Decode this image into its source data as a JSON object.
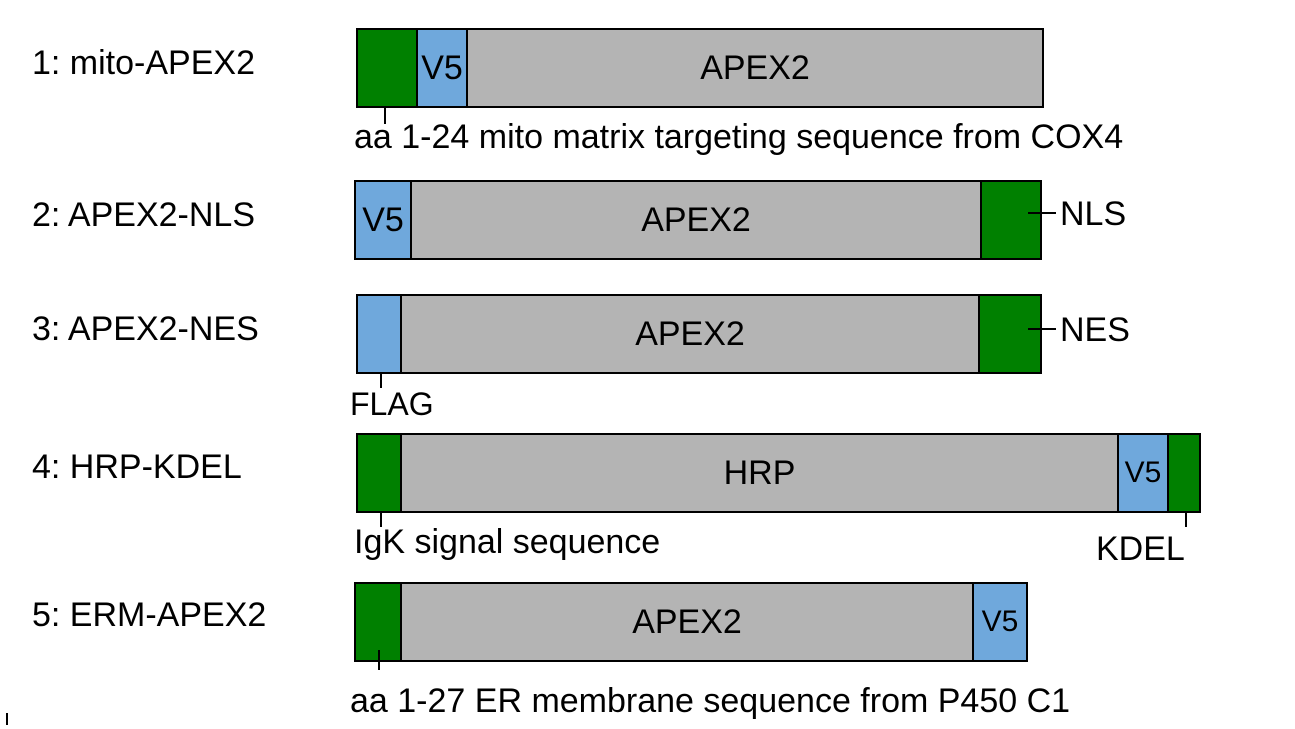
{
  "constructs": [
    {
      "label": "1: mito-APEX2",
      "segments": [
        "",
        "V5",
        "APEX2"
      ],
      "annotation": "aa 1-24 mito matrix targeting sequence from COX4"
    },
    {
      "label": "2: APEX2-NLS",
      "segments": [
        "V5",
        "APEX2",
        ""
      ],
      "annotation": "NLS"
    },
    {
      "label": "3: APEX2-NES",
      "segments": [
        "",
        "APEX2",
        ""
      ],
      "annotation": "NES",
      "annotation2": "FLAG"
    },
    {
      "label": "4: HRP-KDEL",
      "segments": [
        "",
        "HRP",
        "V5",
        ""
      ],
      "annotation": "IgK signal sequence",
      "annotation2": "KDEL"
    },
    {
      "label": "5: ERM-APEX2",
      "segments": [
        "",
        "APEX2",
        "V5"
      ],
      "annotation": "aa 1-27 ER membrane sequence from P450 C1"
    }
  ],
  "colors": {
    "targeting": "#008000",
    "tag": "#6fa8dc",
    "enzyme": "#b4b4b4"
  }
}
